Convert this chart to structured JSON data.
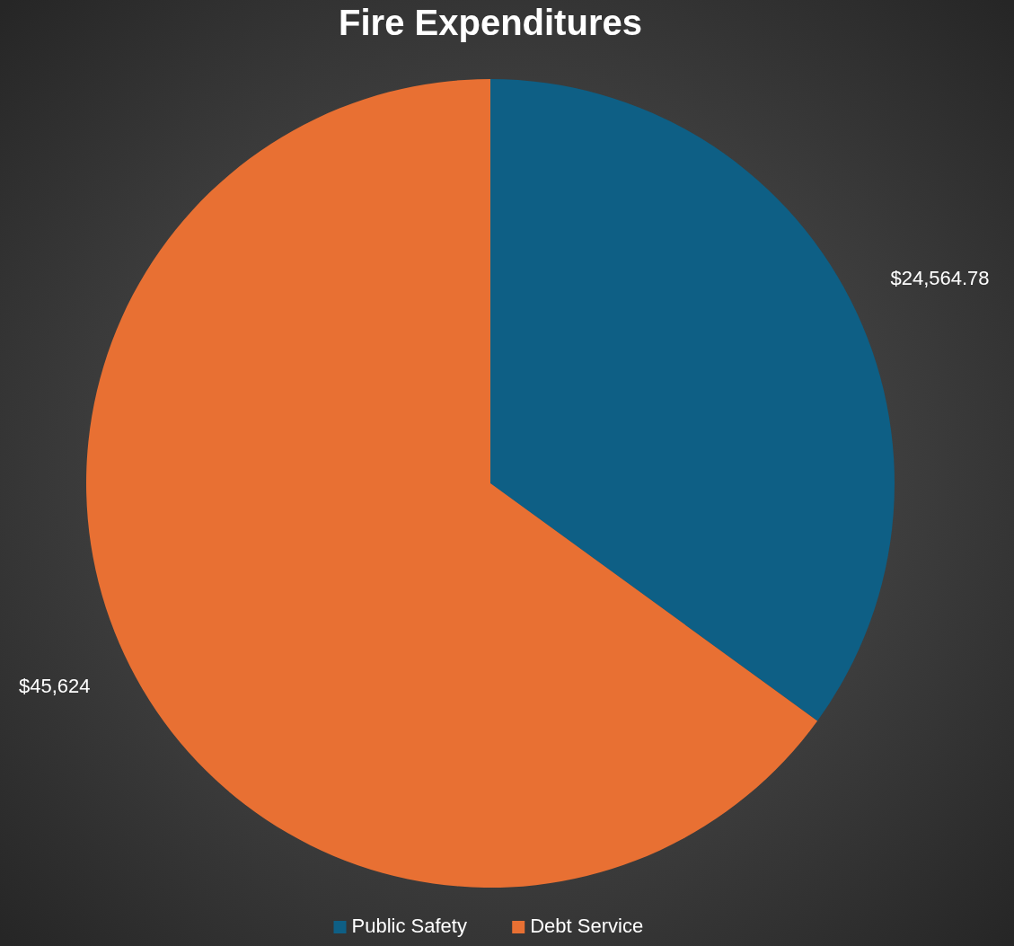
{
  "chart_data": {
    "type": "pie",
    "title": "Fire Expenditures",
    "categories": [
      "Public Safety",
      "Debt Service"
    ],
    "values": [
      24564.78,
      45624
    ],
    "colors": [
      "#0e5f85",
      "#e87033"
    ],
    "value_labels": [
      "$24,564.78",
      "$45,624"
    ],
    "legend": "bottom"
  }
}
